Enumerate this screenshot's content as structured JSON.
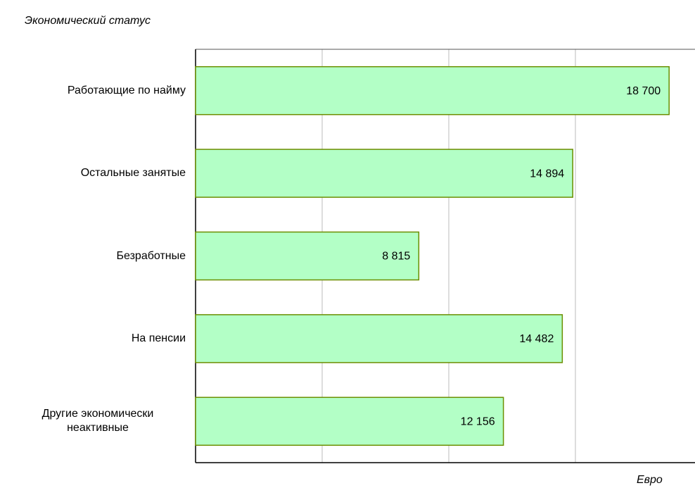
{
  "chart_data": {
    "type": "barh",
    "title": "Экономический статус",
    "xlabel": "Евро",
    "categories": [
      "Работающие по найму",
      "Остальные занятые",
      "Безработные",
      "На пенсии",
      "Другие экономически неактивные"
    ],
    "values": [
      18700,
      14894,
      8815,
      14482,
      12156
    ],
    "value_labels": [
      "18 700",
      "14 894",
      "8 815",
      "14 482",
      "12 156"
    ],
    "color": "#b3ffc6",
    "edge_color": "#6b8e00",
    "xlim": [
      0,
      20000
    ],
    "xticks": [
      5000,
      10000,
      15000
    ],
    "grid": true
  }
}
